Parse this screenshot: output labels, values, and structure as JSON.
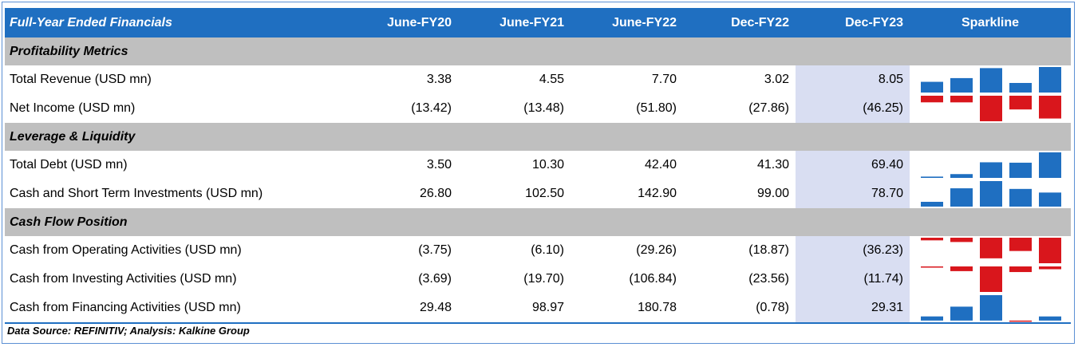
{
  "table": {
    "title": "Full-Year Ended Financials",
    "columns": [
      "June-FY20",
      "June-FY21",
      "June-FY22",
      "Dec-FY22",
      "Dec-FY23"
    ],
    "sparkline_label": "Sparkline",
    "positive_color": "#1f6fc1",
    "negative_color": "#d9161c",
    "highlight_color": "#d9def2",
    "sections": [
      {
        "label": "Profitability Metrics",
        "rows": [
          {
            "label": "Total Revenue (USD mn)",
            "display": [
              "3.38",
              "4.55",
              "7.70",
              "3.02",
              "8.05"
            ],
            "values": [
              3.38,
              4.55,
              7.7,
              3.02,
              8.05
            ]
          },
          {
            "label": "Net Income (USD mn)",
            "display": [
              "(13.42)",
              "(13.48)",
              "(51.80)",
              "(27.86)",
              "(46.25)"
            ],
            "values": [
              -13.42,
              -13.48,
              -51.8,
              -27.86,
              -46.25
            ]
          }
        ]
      },
      {
        "label": "Leverage & Liquidity",
        "rows": [
          {
            "label": "Total Debt (USD mn)",
            "display": [
              "3.50",
              "10.30",
              "42.40",
              "41.30",
              "69.40"
            ],
            "values": [
              3.5,
              10.3,
              42.4,
              41.3,
              69.4
            ]
          },
          {
            "label": "Cash and Short Term Investments (USD mn)",
            "display": [
              "26.80",
              "102.50",
              "142.90",
              "99.00",
              "78.70"
            ],
            "values": [
              26.8,
              102.5,
              142.9,
              99.0,
              78.7
            ]
          }
        ]
      },
      {
        "label": "Cash Flow Position",
        "rows": [
          {
            "label": "Cash from Operating Activities (USD mn)",
            "display": [
              "(3.75)",
              "(6.10)",
              "(29.26)",
              "(18.87)",
              "(36.23)"
            ],
            "values": [
              -3.75,
              -6.1,
              -29.26,
              -18.87,
              -36.23
            ]
          },
          {
            "label": "Cash from Investing Activities (USD mn)",
            "display": [
              "(3.69)",
              "(19.70)",
              "(106.84)",
              "(23.56)",
              "(11.74)"
            ],
            "values": [
              -3.69,
              -19.7,
              -106.84,
              -23.56,
              -11.74
            ]
          },
          {
            "label": "Cash from Financing Activities (USD mn)",
            "display": [
              "29.48",
              "98.97",
              "180.78",
              "(0.78)",
              "29.31"
            ],
            "values": [
              29.48,
              98.97,
              180.78,
              -0.78,
              29.31
            ]
          }
        ]
      }
    ]
  },
  "footer": {
    "source": "Data Source: REFINITIV; Analysis: Kalkine Group"
  }
}
